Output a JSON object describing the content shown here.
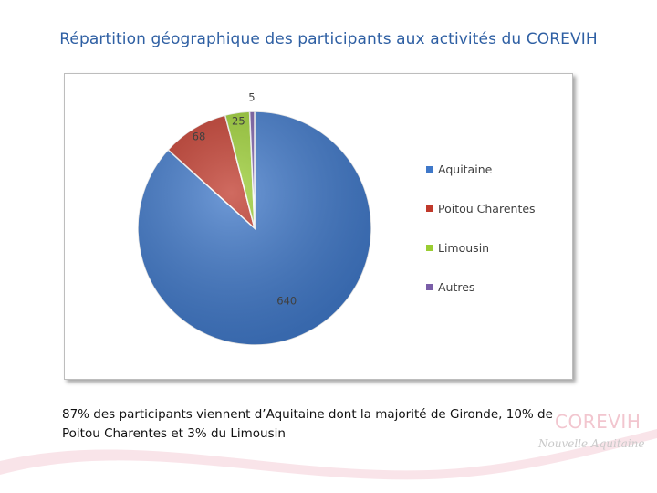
{
  "page": {
    "title": "Répartition géographique des participants aux activités du COREVIH",
    "caption_line1": "87% des participants viennent d’Aquitaine dont la majorité de Gironde, 10% de",
    "caption_line2": "Poitou Charentes et 3% du Limousin"
  },
  "logo": {
    "main": "COREVIH",
    "sub": "Nouvelle Aquitaine"
  },
  "colors": {
    "title": "#2e5fa3",
    "accent_pink": "#f4c9d2"
  },
  "chart_data": {
    "type": "pie",
    "title": "",
    "categories": [
      "Aquitaine",
      "Poitou Charentes",
      "Limousin",
      "Autres"
    ],
    "values": [
      640,
      68,
      25,
      5
    ],
    "data_labels": [
      "640",
      "68",
      "25",
      "5"
    ],
    "colors": [
      "#3f78c9",
      "#c0392b",
      "#9acd32",
      "#7a5ea8"
    ],
    "legend_position": "right",
    "start_angle": "12 o'clock",
    "direction": "clockwise"
  }
}
